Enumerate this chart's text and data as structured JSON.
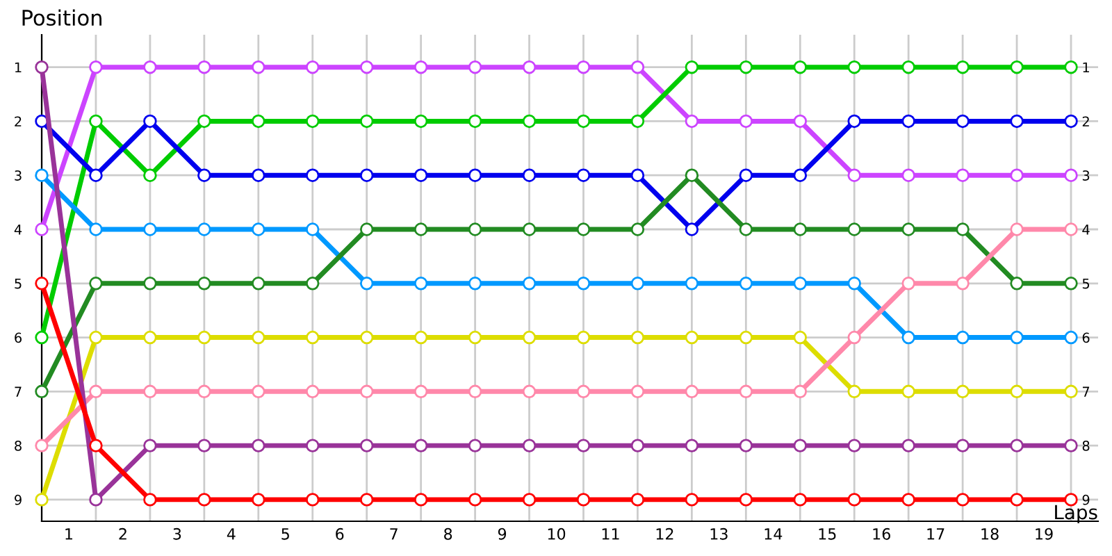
{
  "chart_data": {
    "type": "line",
    "xlabel": "Laps",
    "ylabel": "Position",
    "x": [
      0,
      1,
      2,
      3,
      4,
      5,
      6,
      7,
      8,
      9,
      10,
      11,
      12,
      13,
      14,
      15,
      16,
      17,
      18,
      19
    ],
    "series": [
      {
        "color": "#cc44ff",
        "values": [
          4,
          1,
          1,
          1,
          1,
          1,
          1,
          1,
          1,
          1,
          1,
          1,
          2,
          2,
          2,
          3,
          3,
          3,
          3,
          3
        ]
      },
      {
        "color": "#00cc00",
        "values": [
          6,
          2,
          3,
          2,
          2,
          2,
          2,
          2,
          2,
          2,
          2,
          2,
          1,
          1,
          1,
          1,
          1,
          1,
          1,
          1
        ]
      },
      {
        "color": "#0000ee",
        "values": [
          2,
          3,
          2,
          3,
          3,
          3,
          3,
          3,
          3,
          3,
          3,
          3,
          4,
          3,
          3,
          2,
          2,
          2,
          2,
          2
        ]
      },
      {
        "color": "#0099ff",
        "values": [
          3,
          4,
          4,
          4,
          4,
          4,
          5,
          5,
          5,
          5,
          5,
          5,
          5,
          5,
          5,
          5,
          6,
          6,
          6,
          6
        ]
      },
      {
        "color": "#228b22",
        "values": [
          7,
          5,
          5,
          5,
          5,
          5,
          4,
          4,
          4,
          4,
          4,
          4,
          3,
          4,
          4,
          4,
          4,
          4,
          5,
          5
        ]
      },
      {
        "color": "#dddd00",
        "values": [
          9,
          6,
          6,
          6,
          6,
          6,
          6,
          6,
          6,
          6,
          6,
          6,
          6,
          6,
          6,
          7,
          7,
          7,
          7,
          7
        ]
      },
      {
        "color": "#ff88aa",
        "values": [
          8,
          7,
          7,
          7,
          7,
          7,
          7,
          7,
          7,
          7,
          7,
          7,
          7,
          7,
          7,
          6,
          5,
          5,
          4,
          4
        ]
      },
      {
        "color": "#993399",
        "values": [
          1,
          9,
          8,
          8,
          8,
          8,
          8,
          8,
          8,
          8,
          8,
          8,
          8,
          8,
          8,
          8,
          8,
          8,
          8,
          8
        ]
      },
      {
        "color": "#ff0000",
        "values": [
          5,
          8,
          9,
          9,
          9,
          9,
          9,
          9,
          9,
          9,
          9,
          9,
          9,
          9,
          9,
          9,
          9,
          9,
          9,
          9
        ]
      }
    ],
    "xlim": [
      0,
      19.5
    ],
    "ylim": [
      9.4,
      0.4
    ],
    "xticks": [
      {
        "value": 0,
        "label": null
      },
      {
        "value": 1,
        "label": null
      },
      {
        "value": 2,
        "label": null
      },
      {
        "value": 3,
        "label": null
      },
      {
        "value": 4,
        "label": null
      },
      {
        "value": 5,
        "label": null
      },
      {
        "value": 6,
        "label": null
      },
      {
        "value": 7,
        "label": null
      },
      {
        "value": 8,
        "label": null
      },
      {
        "value": 9,
        "label": null
      },
      {
        "value": 10,
        "label": null
      },
      {
        "value": 11,
        "label": null
      },
      {
        "value": 12,
        "label": null
      },
      {
        "value": 13,
        "label": null
      },
      {
        "value": 14,
        "label": null
      },
      {
        "value": 15,
        "label": null
      },
      {
        "value": 16,
        "label": null
      },
      {
        "value": 17,
        "label": null
      },
      {
        "value": 18,
        "label": null
      },
      {
        "value": 19,
        "label": null
      },
      {
        "value": 0.5,
        "label": "1"
      },
      {
        "value": 1.5,
        "label": "2"
      },
      {
        "value": 2.5,
        "label": "3"
      },
      {
        "value": 3.5,
        "label": "4"
      },
      {
        "value": 4.5,
        "label": "5"
      },
      {
        "value": 5.5,
        "label": "6"
      },
      {
        "value": 6.5,
        "label": "7"
      },
      {
        "value": 7.5,
        "label": "8"
      },
      {
        "value": 8.5,
        "label": "9"
      },
      {
        "value": 9.5,
        "label": "10"
      },
      {
        "value": 10.5,
        "label": "11"
      },
      {
        "value": 11.5,
        "label": "12"
      },
      {
        "value": 12.5,
        "label": "13"
      },
      {
        "value": 13.5,
        "label": "14"
      },
      {
        "value": 14.5,
        "label": "15"
      },
      {
        "value": 15.5,
        "label": "16"
      },
      {
        "value": 16.5,
        "label": "17"
      },
      {
        "value": 17.5,
        "label": "18"
      },
      {
        "value": 18.5,
        "label": "19"
      }
    ],
    "yticks": [
      1,
      2,
      3,
      4,
      5,
      6,
      7,
      8,
      9
    ],
    "y2lim": [
      9.4,
      0.4
    ],
    "y2ticks": [
      1,
      2,
      3,
      4,
      5,
      6,
      7,
      8,
      9
    ],
    "grid": true,
    "marker": "circle",
    "line_style": "solid",
    "legend": false
  }
}
